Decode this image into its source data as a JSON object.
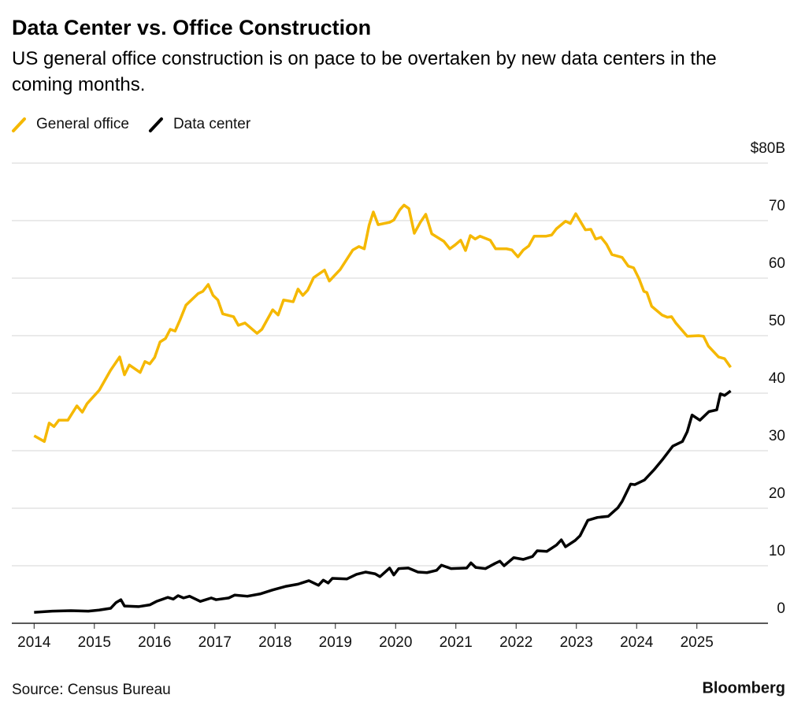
{
  "chart_data": {
    "type": "line",
    "title": "Data Center vs. Office Construction",
    "subtitle": "US general office construction is on pace to be overtaken by new data centers in the coming months.",
    "source": "Source: Census Bureau",
    "brand": "Bloomberg",
    "legend": "top-left",
    "grid": true,
    "xlim": [
      2013.63,
      2026.18
    ],
    "xticks": [
      2014,
      2015,
      2016,
      2017,
      2018,
      2019,
      2020,
      2021,
      2022,
      2023,
      2024,
      2025
    ],
    "ylim": [
      0,
      80
    ],
    "yticks": [
      0,
      10,
      20,
      30,
      40,
      50,
      60,
      70,
      {
        "value": 80,
        "label": "$80B"
      }
    ],
    "series": [
      {
        "name": "General office",
        "color": "#f5b800",
        "x": [
          2014.0,
          2014.17,
          2014.25,
          2014.33,
          2014.41,
          2014.56,
          2014.71,
          2014.8,
          2014.88,
          2015.08,
          2015.27,
          2015.42,
          2015.5,
          2015.58,
          2015.76,
          2015.84,
          2015.92,
          2016.0,
          2016.09,
          2016.18,
          2016.26,
          2016.34,
          2016.42,
          2016.52,
          2016.72,
          2016.8,
          2016.89,
          2016.97,
          2017.05,
          2017.13,
          2017.31,
          2017.39,
          2017.5,
          2017.7,
          2017.78,
          2017.96,
          2018.05,
          2018.14,
          2018.3,
          2018.38,
          2018.46,
          2018.54,
          2018.64,
          2018.82,
          2018.9,
          2019.08,
          2019.29,
          2019.39,
          2019.48,
          2019.56,
          2019.63,
          2019.71,
          2019.9,
          2019.97,
          2020.07,
          2020.14,
          2020.22,
          2020.31,
          2020.41,
          2020.5,
          2020.6,
          2020.8,
          2020.9,
          2020.99,
          2021.08,
          2021.16,
          2021.24,
          2021.32,
          2021.4,
          2021.57,
          2021.66,
          2021.84,
          2021.93,
          2022.03,
          2022.12,
          2022.21,
          2022.3,
          2022.5,
          2022.59,
          2022.67,
          2022.82,
          2022.9,
          2022.99,
          2023.15,
          2023.24,
          2023.32,
          2023.41,
          2023.5,
          2023.59,
          2023.76,
          2023.86,
          2023.95,
          2024.04,
          2024.12,
          2024.17,
          2024.25,
          2024.42,
          2024.51,
          2024.58,
          2024.65,
          2024.84,
          2025.03,
          2025.11,
          2025.19,
          2025.36,
          2025.46,
          2025.56
        ],
        "values": [
          32.6,
          31.6,
          34.8,
          34.2,
          35.3,
          35.3,
          37.8,
          36.7,
          38.2,
          40.5,
          44.0,
          46.3,
          43.2,
          44.9,
          43.6,
          45.5,
          45.1,
          46.2,
          48.9,
          49.5,
          51.1,
          50.8,
          52.7,
          55.3,
          57.3,
          57.7,
          58.9,
          57.0,
          56.2,
          53.8,
          53.3,
          51.8,
          52.2,
          50.4,
          51.1,
          54.5,
          53.6,
          56.2,
          55.9,
          58.1,
          57.0,
          57.9,
          60.1,
          61.4,
          59.5,
          61.5,
          64.9,
          65.5,
          65.1,
          69.2,
          71.5,
          69.3,
          69.7,
          70.1,
          71.9,
          72.7,
          72.1,
          67.8,
          69.7,
          71.1,
          67.7,
          66.4,
          65.1,
          65.8,
          66.6,
          64.8,
          67.4,
          66.8,
          67.3,
          66.6,
          65.1,
          65.1,
          64.9,
          63.7,
          64.9,
          65.6,
          67.3,
          67.3,
          67.5,
          68.6,
          69.9,
          69.5,
          71.2,
          68.4,
          68.5,
          66.8,
          67.1,
          65.9,
          64.1,
          63.6,
          62.1,
          61.8,
          59.9,
          57.7,
          57.5,
          55.1,
          53.6,
          53.2,
          53.3,
          52.2,
          49.9,
          50.0,
          49.9,
          48.2,
          46.3,
          46.0,
          44.5
        ]
      },
      {
        "name": "Data center",
        "color": "#000000",
        "x": [
          2014.0,
          2014.3,
          2014.61,
          2014.9,
          2015.08,
          2015.27,
          2015.36,
          2015.44,
          2015.5,
          2015.74,
          2015.92,
          2016.03,
          2016.22,
          2016.31,
          2016.39,
          2016.48,
          2016.58,
          2016.76,
          2016.94,
          2017.02,
          2017.23,
          2017.33,
          2017.54,
          2017.75,
          2017.96,
          2018.17,
          2018.38,
          2018.56,
          2018.72,
          2018.8,
          2018.88,
          2018.95,
          2019.19,
          2019.35,
          2019.5,
          2019.66,
          2019.74,
          2019.9,
          2019.97,
          2020.05,
          2020.21,
          2020.37,
          2020.52,
          2020.68,
          2020.76,
          2020.92,
          2021.18,
          2021.25,
          2021.33,
          2021.49,
          2021.65,
          2021.73,
          2021.8,
          2021.96,
          2022.12,
          2022.27,
          2022.35,
          2022.51,
          2022.67,
          2022.75,
          2022.82,
          2022.98,
          2023.06,
          2023.19,
          2023.35,
          2023.53,
          2023.69,
          2023.76,
          2023.9,
          2023.97,
          2024.13,
          2024.29,
          2024.44,
          2024.6,
          2024.76,
          2024.84,
          2024.92,
          2025.05,
          2025.2,
          2025.33,
          2025.39,
          2025.46,
          2025.56
        ],
        "values": [
          1.9,
          2.1,
          2.2,
          2.1,
          2.3,
          2.6,
          3.6,
          4.1,
          3.0,
          2.9,
          3.2,
          3.8,
          4.5,
          4.2,
          4.8,
          4.4,
          4.7,
          3.8,
          4.4,
          4.1,
          4.4,
          4.9,
          4.7,
          5.1,
          5.8,
          6.4,
          6.8,
          7.4,
          6.6,
          7.5,
          7.0,
          7.8,
          7.7,
          8.5,
          8.9,
          8.6,
          8.1,
          9.6,
          8.4,
          9.5,
          9.6,
          8.9,
          8.8,
          9.2,
          10.1,
          9.5,
          9.6,
          10.5,
          9.7,
          9.5,
          10.4,
          10.8,
          10.0,
          11.4,
          11.1,
          11.6,
          12.6,
          12.5,
          13.6,
          14.5,
          13.3,
          14.4,
          15.2,
          17.9,
          18.4,
          18.6,
          20.1,
          21.2,
          24.2,
          24.1,
          24.9,
          26.7,
          28.6,
          30.8,
          31.6,
          33.3,
          36.2,
          35.3,
          36.8,
          37.1,
          39.9,
          39.6,
          40.4
        ]
      }
    ]
  }
}
